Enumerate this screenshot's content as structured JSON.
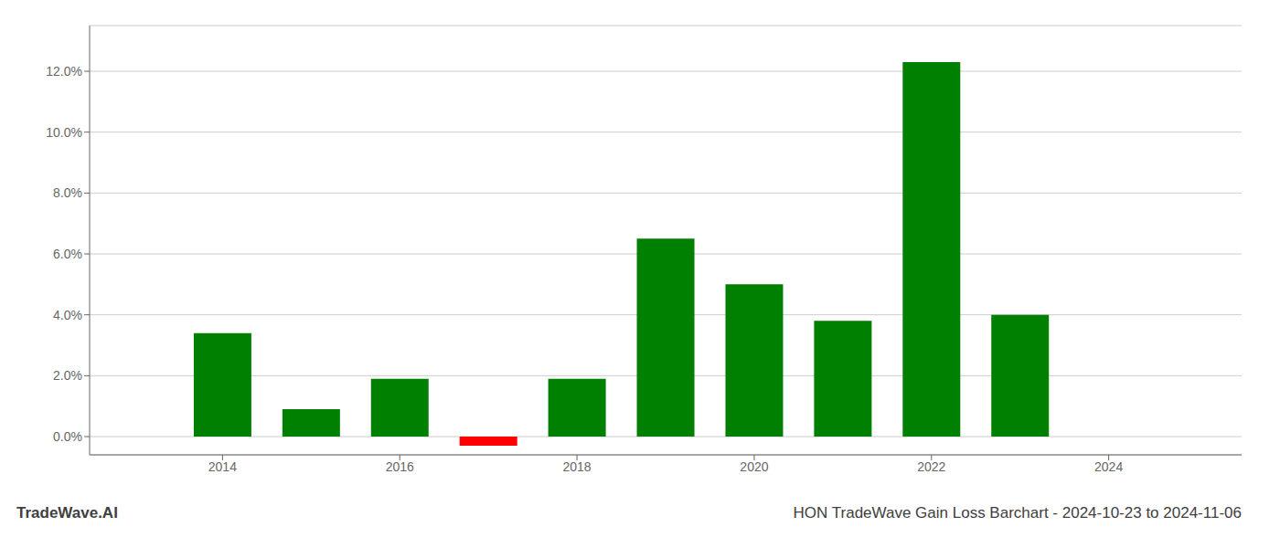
{
  "chart_data": {
    "type": "bar",
    "title": "HON TradeWave Gain Loss Barchart - 2024-10-23 to 2024-11-06",
    "annotations": [
      "TradeWave.AI"
    ],
    "x": [
      2014,
      2015,
      2016,
      2017,
      2018,
      2019,
      2020,
      2021,
      2022,
      2023
    ],
    "values": [
      0.034,
      0.009,
      0.019,
      -0.003,
      0.019,
      0.065,
      0.05,
      0.038,
      0.123,
      0.04
    ],
    "colors": [
      "#008000",
      "#008000",
      "#008000",
      "#ff0000",
      "#008000",
      "#008000",
      "#008000",
      "#008000",
      "#008000",
      "#008000"
    ],
    "xlim": [
      2012.5,
      2025.5
    ],
    "xticks": [
      2014,
      2016,
      2018,
      2020,
      2022,
      2024
    ],
    "ylim": [
      -0.006,
      0.135
    ],
    "yticks": [
      {
        "value": 0.0,
        "label": "0.0%"
      },
      {
        "value": 0.02,
        "label": "2.0%"
      },
      {
        "value": 0.04,
        "label": "4.0%"
      },
      {
        "value": 0.06,
        "label": "6.0%"
      },
      {
        "value": 0.08,
        "label": "8.0%"
      },
      {
        "value": 0.1,
        "label": "10.0%"
      },
      {
        "value": 0.12,
        "label": "12.0%"
      }
    ],
    "grid": "y"
  }
}
